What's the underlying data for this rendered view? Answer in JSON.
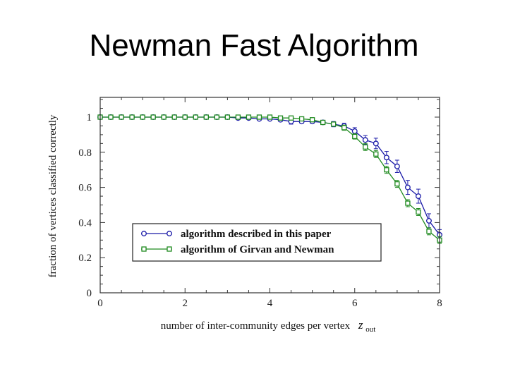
{
  "slide": {
    "title": "Newman Fast Algorithm"
  },
  "chart_data": {
    "type": "line",
    "xlabel": "number of inter-community edges per vertex",
    "xlabel_symbol": "z",
    "xlabel_subscript": "out",
    "ylabel": "fraction of vertices classified correctly",
    "xlim": [
      0,
      8
    ],
    "ylim": [
      0,
      1.1
    ],
    "xticks": [
      "0",
      "2",
      "4",
      "6",
      "8"
    ],
    "yticks": [
      "0",
      "0.2",
      "0.4",
      "0.6",
      "0.8",
      "1"
    ],
    "x": [
      0,
      0.25,
      0.5,
      0.75,
      1,
      1.25,
      1.5,
      1.75,
      2,
      2.25,
      2.5,
      2.75,
      3,
      3.25,
      3.5,
      3.75,
      4,
      4.25,
      4.5,
      4.75,
      5,
      5.25,
      5.5,
      5.75,
      6,
      6.25,
      6.5,
      6.75,
      7,
      7.25,
      7.5,
      7.75,
      8
    ],
    "legend_position": "bottom-center",
    "series": [
      {
        "name": "algorithm described in this paper",
        "color": "#1a1aa8",
        "marker": "circle",
        "values": [
          1.0,
          1.0,
          1.0,
          1.0,
          1.0,
          1.0,
          1.0,
          1.0,
          1.0,
          1.0,
          1.0,
          1.0,
          1.0,
          0.995,
          0.995,
          0.99,
          0.99,
          0.985,
          0.975,
          0.975,
          0.975,
          0.97,
          0.96,
          0.95,
          0.92,
          0.87,
          0.85,
          0.77,
          0.72,
          0.6,
          0.55,
          0.41,
          0.33
        ],
        "errors": [
          0,
          0,
          0,
          0,
          0,
          0,
          0,
          0,
          0,
          0,
          0,
          0,
          0,
          0,
          0,
          0,
          0,
          0.01,
          0.015,
          0.01,
          0.01,
          0.01,
          0.015,
          0.015,
          0.02,
          0.025,
          0.03,
          0.035,
          0.035,
          0.04,
          0.04,
          0.04,
          0.03
        ]
      },
      {
        "name": "algorithm of Girvan and Newman",
        "color": "#1f8a1f",
        "marker": "square",
        "values": [
          1.0,
          1.0,
          1.0,
          1.0,
          1.0,
          1.0,
          1.0,
          1.0,
          1.0,
          1.0,
          1.0,
          1.0,
          1.0,
          1.0,
          1.0,
          1.0,
          1.0,
          0.995,
          0.995,
          0.99,
          0.985,
          0.97,
          0.96,
          0.94,
          0.89,
          0.83,
          0.79,
          0.7,
          0.62,
          0.51,
          0.46,
          0.35,
          0.3
        ],
        "errors": [
          0,
          0,
          0,
          0,
          0,
          0,
          0,
          0,
          0,
          0,
          0,
          0,
          0,
          0,
          0,
          0,
          0,
          0,
          0,
          0.01,
          0.01,
          0.01,
          0.01,
          0.015,
          0.015,
          0.02,
          0.02,
          0.02,
          0.02,
          0.02,
          0.02,
          0.02,
          0.02
        ]
      }
    ]
  }
}
